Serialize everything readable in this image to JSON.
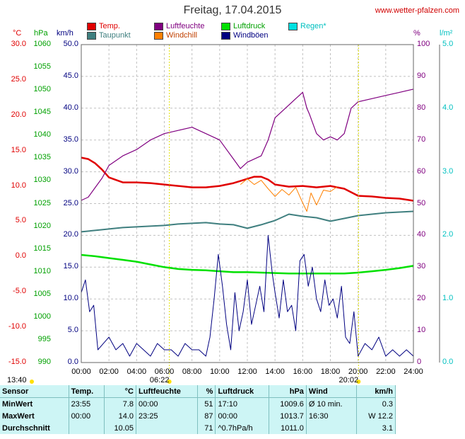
{
  "title": "Freitag, 17.04.2015",
  "site": "www.wetter-pfalzen.com",
  "legend": [
    {
      "label": "Temp.",
      "color": "#e00000"
    },
    {
      "label": "Taupunkt",
      "color": "#3f7f7f"
    },
    {
      "label": "Luftfeuchte",
      "color": "#800080"
    },
    {
      "label": "Windchill",
      "color": "#ff8000"
    },
    {
      "label": "Luftdruck",
      "color": "#00e000"
    },
    {
      "label": "Windböen",
      "color": "#000080"
    },
    {
      "label": "Regen*",
      "color": "#00e0e0"
    }
  ],
  "units": {
    "temp": "°C",
    "press": "hPa",
    "wind": "km/h",
    "hum": "%",
    "rain": "l/m²"
  },
  "axes": {
    "temp_ticks": [
      "30.0",
      "25.0",
      "20.0",
      "15.0",
      "10.0",
      "5.0",
      "0.0",
      "-5.0",
      "-10.0",
      "-15.0"
    ],
    "press_ticks": [
      "1060",
      "1055",
      "1050",
      "1045",
      "1040",
      "1035",
      "1030",
      "1025",
      "1020",
      "1015",
      "1010",
      "1005",
      "1000",
      "995",
      "990"
    ],
    "wind_ticks": [
      "50.0",
      "45.0",
      "40.0",
      "35.0",
      "30.0",
      "25.0",
      "20.0",
      "15.0",
      "10.0",
      "5.0",
      "0.0"
    ],
    "hum_ticks": [
      "100",
      "90",
      "80",
      "70",
      "60",
      "50",
      "40",
      "30",
      "20",
      "10",
      "0"
    ],
    "rain_ticks": [
      "5.0",
      "4.0",
      "3.0",
      "2.0",
      "1.0",
      "0.0"
    ],
    "time_ticks": [
      "00:00",
      "02:00",
      "04:00",
      "06:00",
      "08:00",
      "10:00",
      "12:00",
      "14:00",
      "16:00",
      "18:00",
      "20:00",
      "22:00",
      "24:00"
    ]
  },
  "sun": {
    "sunrise": "06:22",
    "sunset": "20:02",
    "left_time": "13:40"
  },
  "chart_data": {
    "type": "line",
    "title": "Freitag, 17.04.2015",
    "x_range": [
      "00:00",
      "24:00"
    ],
    "grid": true,
    "series": [
      {
        "name": "Temp.",
        "axis": "°C",
        "color": "#e00000",
        "x": [
          0,
          0.5,
          1,
          1.5,
          2,
          3,
          4,
          5,
          6,
          7,
          8,
          9,
          10,
          11,
          12,
          12.5,
          13,
          13.5,
          14,
          15,
          16,
          17,
          18,
          18.5,
          19,
          20,
          21,
          22,
          23,
          24
        ],
        "y": [
          14.0,
          13.8,
          13.2,
          12.3,
          11.2,
          10.5,
          10.5,
          10.4,
          10.2,
          10.0,
          9.8,
          9.8,
          10.0,
          10.4,
          11.0,
          11.3,
          11.3,
          10.9,
          10.2,
          9.9,
          10.0,
          9.8,
          10.0,
          9.8,
          9.6,
          8.6,
          8.5,
          8.3,
          8.2,
          7.9
        ]
      },
      {
        "name": "Taupunkt",
        "axis": "°C",
        "color": "#3f7f7f",
        "x": [
          0,
          1,
          2,
          3,
          4,
          5,
          6,
          7,
          8,
          9,
          10,
          11,
          12,
          13,
          14,
          15,
          16,
          17,
          18,
          19,
          20,
          21,
          22,
          23,
          24
        ],
        "y": [
          3.5,
          3.7,
          3.9,
          4.1,
          4.2,
          4.3,
          4.4,
          4.6,
          4.7,
          4.8,
          4.6,
          4.5,
          4.0,
          4.5,
          5.1,
          6.0,
          5.7,
          5.5,
          5.0,
          5.4,
          5.8,
          6.0,
          6.2,
          6.3,
          6.4
        ]
      },
      {
        "name": "Luftfeuchte",
        "axis": "%",
        "color": "#800080",
        "x": [
          0,
          0.5,
          1,
          1.5,
          2,
          3,
          4,
          5,
          6,
          7,
          8,
          9,
          10,
          10.5,
          11,
          11.5,
          12,
          13,
          13.5,
          14,
          14.5,
          15,
          15.5,
          16,
          16.3,
          16.5,
          17,
          17.5,
          18,
          18.5,
          19,
          19.5,
          20,
          21,
          22,
          23,
          24
        ],
        "y": [
          51,
          52,
          55,
          58,
          62,
          65,
          67,
          70,
          72,
          73,
          74,
          72,
          70,
          67,
          64,
          61,
          63,
          65,
          70,
          77,
          79,
          81,
          83,
          85,
          80,
          78,
          72,
          70,
          71,
          70,
          72,
          80,
          82,
          83,
          84,
          85,
          86
        ]
      },
      {
        "name": "Windchill",
        "axis": "°C",
        "color": "#ff8000",
        "x": [
          11.5,
          12,
          12.5,
          13,
          13.5,
          14,
          14.5,
          15,
          15.5,
          16,
          16.3,
          16.6,
          17,
          17.5,
          18,
          18.5
        ],
        "y": [
          10.2,
          11.0,
          10.2,
          10.8,
          9.6,
          8.5,
          9.5,
          8.7,
          9.8,
          7.6,
          6.4,
          9.0,
          7.3,
          9.4,
          9.2,
          9.9
        ]
      },
      {
        "name": "Luftdruck",
        "axis": "hPa",
        "color": "#00e000",
        "x": [
          0,
          1,
          2,
          3,
          4,
          5,
          6,
          7,
          8,
          9,
          10,
          11,
          12,
          13,
          14,
          15,
          16,
          17,
          18,
          19,
          20,
          21,
          22,
          23,
          24
        ],
        "y": [
          1013.7,
          1013.4,
          1013.0,
          1012.6,
          1012.2,
          1011.6,
          1011.0,
          1010.6,
          1010.4,
          1010.3,
          1010.1,
          1009.9,
          1009.9,
          1009.8,
          1009.7,
          1009.6,
          1009.6,
          1009.6,
          1009.6,
          1009.6,
          1009.8,
          1010.1,
          1010.4,
          1010.8,
          1011.3
        ]
      },
      {
        "name": "Windböen",
        "axis": "km/h",
        "color": "#000080",
        "x": [
          0,
          0.3,
          0.6,
          0.9,
          1.2,
          1.6,
          2.0,
          2.5,
          3,
          3.5,
          4,
          4.5,
          5,
          5.5,
          6,
          6.5,
          7,
          7.5,
          8,
          8.5,
          9,
          9.3,
          9.6,
          9.9,
          10.2,
          10.5,
          10.8,
          11.1,
          11.4,
          11.7,
          12,
          12.3,
          12.6,
          12.9,
          13.2,
          13.5,
          13.8,
          14,
          14.3,
          14.6,
          14.9,
          15.2,
          15.5,
          15.8,
          16.1,
          16.4,
          16.7,
          17,
          17.3,
          17.6,
          17.9,
          18.2,
          18.5,
          18.8,
          19.1,
          19.4,
          19.7,
          20,
          20.5,
          21,
          21.5,
          22,
          22.5,
          23,
          23.5,
          24
        ],
        "y": [
          11,
          13,
          8,
          9,
          2,
          3,
          4,
          2,
          3,
          1,
          3,
          2,
          1,
          3,
          2,
          2,
          1,
          3,
          2,
          2,
          1,
          4,
          10,
          17,
          12,
          6,
          2,
          11,
          5,
          8,
          13,
          6,
          9,
          12,
          8,
          20,
          14,
          11,
          7,
          13,
          8,
          9,
          5,
          16,
          17,
          12,
          15,
          10,
          8,
          13,
          9,
          10,
          7,
          12,
          4,
          3,
          8,
          1,
          3,
          2,
          4,
          1,
          2,
          1,
          2,
          1
        ]
      }
    ]
  },
  "stats": {
    "headers": [
      "Sensor",
      "Temp.",
      "°C",
      "Luftfeuchte",
      "%",
      "Luftdruck",
      "hPa",
      "Wind",
      "km/h"
    ],
    "rows": [
      [
        "MinWert",
        "23:55",
        "7.8",
        "00:00",
        "51",
        "17:10",
        "1009.6",
        "Ø 10 min.",
        "0.3"
      ],
      [
        "MaxWert",
        "00:00",
        "14.0",
        "23:25",
        "87",
        "00:00",
        "1013.7",
        "16:30",
        "W 12.2"
      ],
      [
        "Durchschnitt",
        "",
        "10.05",
        "",
        "71",
        "^0.7hPa/h",
        "1011.0",
        "",
        "3.1"
      ]
    ]
  }
}
